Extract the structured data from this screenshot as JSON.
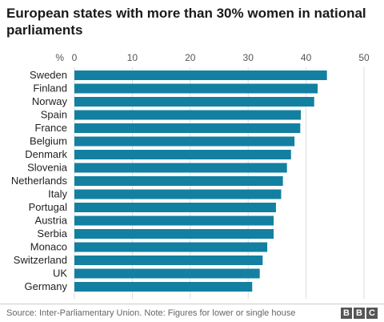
{
  "chart_data": {
    "type": "bar",
    "orientation": "horizontal",
    "title": "European states with more than 30% women in national parliaments",
    "unit_label": "%",
    "categories": [
      "Sweden",
      "Finland",
      "Norway",
      "Spain",
      "France",
      "Belgium",
      "Denmark",
      "Slovenia",
      "Netherlands",
      "Italy",
      "Portugal",
      "Austria",
      "Serbia",
      "Monaco",
      "Switzerland",
      "UK",
      "Germany"
    ],
    "values": [
      43.6,
      42.0,
      41.4,
      39.1,
      39.0,
      38.0,
      37.4,
      36.7,
      36.0,
      35.7,
      34.8,
      34.4,
      34.4,
      33.3,
      32.5,
      32.0,
      30.7
    ],
    "xticks": [
      0,
      10,
      20,
      30,
      40,
      50
    ],
    "xlim": [
      0,
      50
    ],
    "bar_color": "#1380a1",
    "grid": true
  },
  "footer": {
    "source": "Source: Inter-Parliamentary Union. Note: Figures for lower or single house",
    "logo_letters": [
      "B",
      "B",
      "C"
    ]
  }
}
